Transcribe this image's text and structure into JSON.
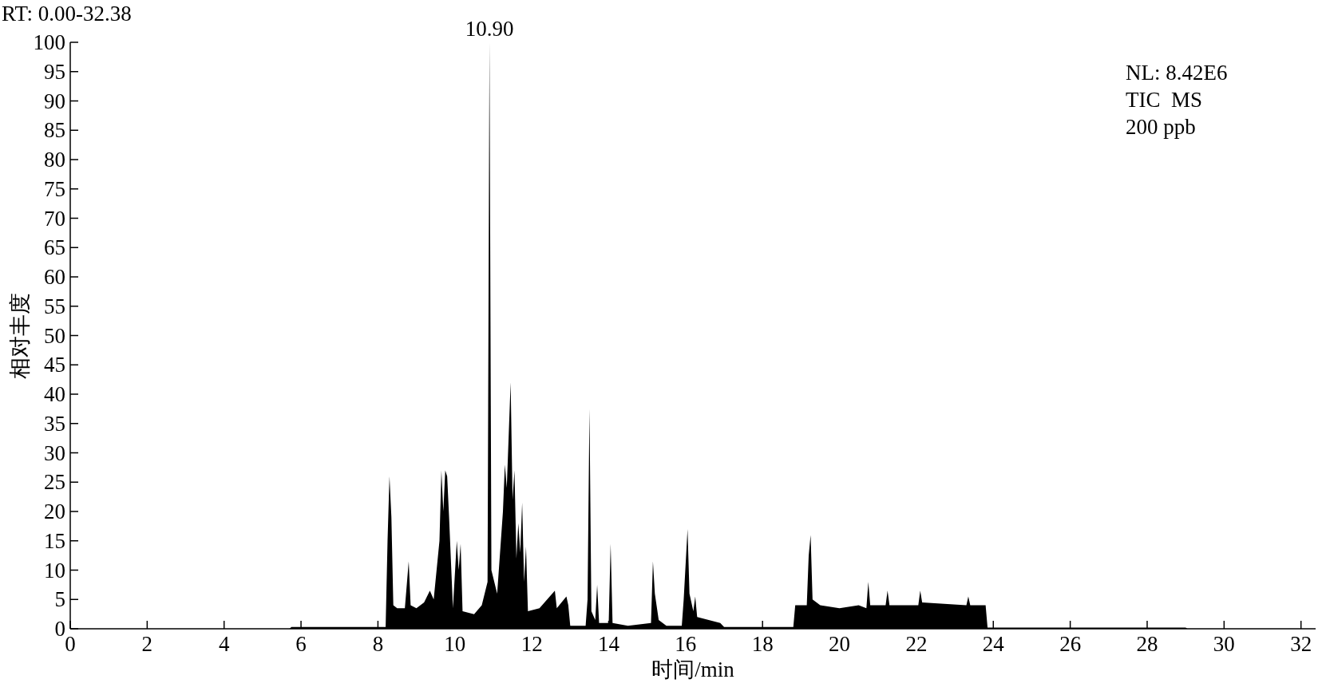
{
  "chart_data": {
    "type": "area",
    "xlabel": "时间/min",
    "ylabel": "相对丰度",
    "annotations": [
      "RT: 0.00-32.38",
      {
        "text": "10.90",
        "x": 10.9,
        "y": 100
      },
      "NL: 8.42E6",
      "TIC  MS",
      "200 ppb"
    ],
    "xlim": [
      0,
      32.38
    ],
    "ylim": [
      0,
      100
    ],
    "xticks": [
      0,
      2,
      4,
      6,
      8,
      10,
      12,
      14,
      16,
      18,
      20,
      22,
      24,
      26,
      28,
      30,
      32
    ],
    "yticks": [
      0,
      5,
      10,
      15,
      20,
      25,
      30,
      35,
      40,
      45,
      50,
      55,
      60,
      65,
      70,
      75,
      80,
      85,
      90,
      95,
      100
    ],
    "color": "#000000",
    "x": [
      0,
      5.7,
      5.75,
      8.2,
      8.25,
      8.3,
      8.35,
      8.4,
      8.5,
      8.7,
      8.8,
      8.85,
      9.0,
      9.2,
      9.35,
      9.45,
      9.6,
      9.65,
      9.7,
      9.75,
      9.8,
      9.85,
      9.95,
      10.05,
      10.1,
      10.15,
      10.2,
      10.5,
      10.7,
      10.85,
      10.9,
      10.95,
      11.1,
      11.25,
      11.3,
      11.35,
      11.45,
      11.5,
      11.55,
      11.6,
      11.65,
      11.7,
      11.75,
      11.8,
      11.85,
      11.9,
      12.2,
      12.6,
      12.65,
      12.9,
      12.95,
      13.0,
      13.4,
      13.45,
      13.5,
      13.55,
      13.65,
      13.7,
      13.75,
      14.0,
      14.05,
      14.1,
      14.5,
      15.1,
      15.15,
      15.2,
      15.3,
      15.5,
      15.9,
      15.95,
      16.05,
      16.1,
      16.2,
      16.25,
      16.3,
      16.9,
      17.0,
      18.8,
      18.85,
      19.15,
      19.2,
      19.25,
      19.3,
      19.5,
      20.0,
      20.5,
      20.7,
      20.75,
      20.8,
      21.2,
      21.25,
      21.3,
      22.05,
      22.1,
      22.15,
      23.3,
      23.35,
      23.4,
      23.8,
      23.85,
      29.0,
      29.05,
      32.38
    ],
    "values": [
      0,
      0,
      0.3,
      0.3,
      15,
      26,
      19,
      4,
      3.5,
      3.5,
      11.5,
      4,
      3.5,
      4.5,
      6.5,
      5,
      15,
      27,
      20,
      27,
      26,
      19,
      3.5,
      15,
      10,
      14.5,
      3,
      2.5,
      4,
      8,
      100,
      10,
      6,
      20,
      28,
      24,
      42,
      22,
      27,
      12,
      18,
      13,
      21.5,
      8,
      14,
      3,
      3.5,
      6.5,
      3.5,
      5.5,
      4,
      0.5,
      0.5,
      5,
      37.5,
      3,
      1.5,
      7.5,
      1,
      1,
      14.5,
      1,
      0.5,
      1,
      11.5,
      6,
      1.5,
      0.5,
      0.5,
      5,
      17,
      6,
      3,
      5.5,
      2,
      1,
      0.3,
      0.3,
      4,
      4,
      12.5,
      16,
      5,
      4,
      3.5,
      4,
      3.5,
      8,
      4,
      4,
      6.5,
      4,
      4,
      6.5,
      4.5,
      4,
      5.5,
      4,
      4,
      0.2,
      0.2,
      0,
      0
    ]
  }
}
